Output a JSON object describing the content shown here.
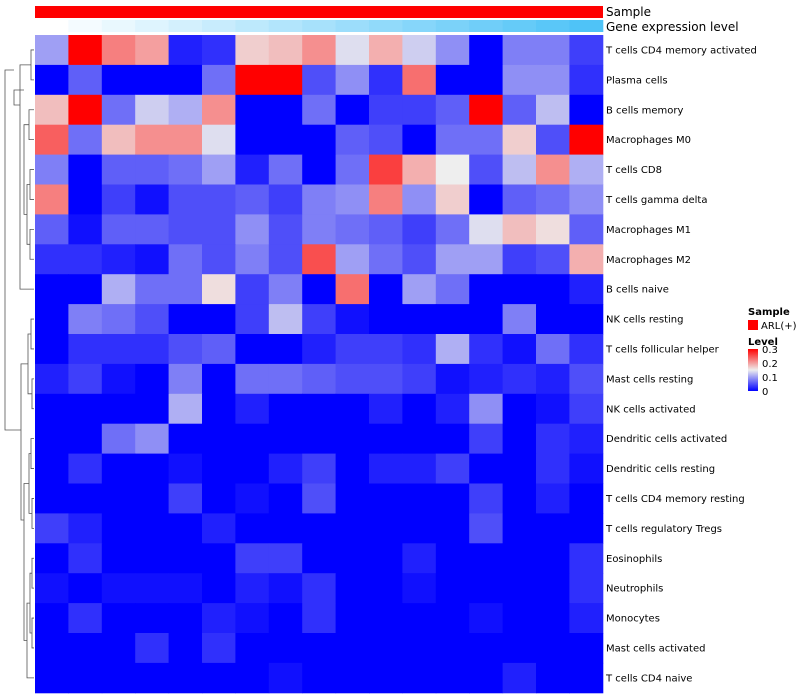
{
  "chart_data": {
    "type": "heatmap",
    "annotations": [
      {
        "label": "Sample",
        "type": "categorical",
        "colors": [
          "#ff0000"
        ]
      },
      {
        "label": "Gene expression level",
        "type": "gradient",
        "color_start": "#ffffff",
        "color_end": "#4fc3f7"
      }
    ],
    "rows": [
      "T cells CD4 memory activated",
      "Plasma cells",
      "B cells memory",
      "Macrophages M0",
      "T cells CD8",
      "T cells gamma delta",
      "Macrophages M1",
      "Macrophages M2",
      "B cells naive",
      "NK cells resting",
      "T cells follicular helper",
      "Mast cells resting",
      "NK cells activated",
      "Dendritic cells activated",
      "Dendritic cells resting",
      "T cells CD4 memory resting",
      "T cells regulatory  Tregs",
      "Eosinophils",
      "Neutrophils",
      "Monocytes",
      "Mast cells activated",
      "T cells CD4 naive"
    ],
    "n_columns": 17,
    "values": [
      [
        0.1,
        0.3,
        0.22,
        0.2,
        0.02,
        0.03,
        0.17,
        0.18,
        0.21,
        0.14,
        0.19,
        0.13,
        0.09,
        0.0,
        0.08,
        0.08,
        0.04
      ],
      [
        0.0,
        0.06,
        0.0,
        0.0,
        0.0,
        0.07,
        0.3,
        0.3,
        0.05,
        0.09,
        0.03,
        0.23,
        0.0,
        0.0,
        0.09,
        0.09,
        0.03
      ],
      [
        0.18,
        0.3,
        0.07,
        0.13,
        0.11,
        0.21,
        0.0,
        0.0,
        0.07,
        0.0,
        0.04,
        0.04,
        0.06,
        0.3,
        0.06,
        0.12,
        0.0
      ],
      [
        0.24,
        0.07,
        0.18,
        0.21,
        0.21,
        0.14,
        0.0,
        0.0,
        0.0,
        0.06,
        0.05,
        0.0,
        0.07,
        0.07,
        0.17,
        0.05,
        0.3
      ],
      [
        0.08,
        0.0,
        0.06,
        0.06,
        0.07,
        0.1,
        0.02,
        0.07,
        0.0,
        0.07,
        0.26,
        0.19,
        0.15,
        0.05,
        0.12,
        0.21,
        0.11
      ],
      [
        0.22,
        0.0,
        0.04,
        0.01,
        0.05,
        0.05,
        0.06,
        0.04,
        0.08,
        0.09,
        0.22,
        0.09,
        0.17,
        0.0,
        0.06,
        0.07,
        0.09
      ],
      [
        0.06,
        0.01,
        0.06,
        0.06,
        0.05,
        0.05,
        0.09,
        0.05,
        0.08,
        0.07,
        0.06,
        0.04,
        0.07,
        0.14,
        0.18,
        0.16,
        0.06
      ],
      [
        0.03,
        0.03,
        0.02,
        0.01,
        0.07,
        0.05,
        0.08,
        0.05,
        0.25,
        0.1,
        0.07,
        0.05,
        0.1,
        0.1,
        0.04,
        0.05,
        0.19
      ],
      [
        0.0,
        0.0,
        0.11,
        0.07,
        0.07,
        0.16,
        0.04,
        0.08,
        0.0,
        0.23,
        0.0,
        0.1,
        0.07,
        0.0,
        0.0,
        0.0,
        0.02
      ],
      [
        0.0,
        0.08,
        0.07,
        0.05,
        0.0,
        0.0,
        0.04,
        0.12,
        0.04,
        0.01,
        0.0,
        0.0,
        0.0,
        0.0,
        0.08,
        0.0,
        0.0
      ],
      [
        0.0,
        0.03,
        0.03,
        0.03,
        0.05,
        0.06,
        0.0,
        0.0,
        0.02,
        0.04,
        0.04,
        0.03,
        0.11,
        0.03,
        0.01,
        0.07,
        0.03
      ],
      [
        0.02,
        0.04,
        0.01,
        0.0,
        0.08,
        0.0,
        0.07,
        0.07,
        0.06,
        0.05,
        0.05,
        0.04,
        0.01,
        0.02,
        0.03,
        0.02,
        0.05
      ],
      [
        0.0,
        0.0,
        0.0,
        0.0,
        0.11,
        0.0,
        0.02,
        0.0,
        0.0,
        0.0,
        0.02,
        0.0,
        0.02,
        0.09,
        0.0,
        0.01,
        0.04
      ],
      [
        0.0,
        0.0,
        0.07,
        0.09,
        0.0,
        0.0,
        0.0,
        0.0,
        0.0,
        0.0,
        0.0,
        0.0,
        0.0,
        0.04,
        0.0,
        0.03,
        0.02
      ],
      [
        0.0,
        0.03,
        0.0,
        0.0,
        0.01,
        0.0,
        0.0,
        0.02,
        0.04,
        0.0,
        0.02,
        0.02,
        0.04,
        0.0,
        0.0,
        0.03,
        0.01
      ],
      [
        0.0,
        0.0,
        0.0,
        0.0,
        0.04,
        0.0,
        0.01,
        0.0,
        0.05,
        0.0,
        0.0,
        0.0,
        0.0,
        0.04,
        0.0,
        0.02,
        0.0
      ],
      [
        0.04,
        0.02,
        0.0,
        0.0,
        0.0,
        0.02,
        0.0,
        0.0,
        0.0,
        0.0,
        0.0,
        0.0,
        0.0,
        0.05,
        0.0,
        0.0,
        0.0
      ],
      [
        0.0,
        0.03,
        0.0,
        0.0,
        0.0,
        0.0,
        0.04,
        0.04,
        0.0,
        0.0,
        0.0,
        0.02,
        0.0,
        0.0,
        0.0,
        0.0,
        0.03
      ],
      [
        0.01,
        0.0,
        0.01,
        0.01,
        0.01,
        0.0,
        0.02,
        0.01,
        0.03,
        0.0,
        0.0,
        0.01,
        0.0,
        0.0,
        0.0,
        0.0,
        0.03
      ],
      [
        0.0,
        0.03,
        0.0,
        0.0,
        0.0,
        0.02,
        0.01,
        0.0,
        0.03,
        0.0,
        0.0,
        0.0,
        0.0,
        0.01,
        0.0,
        0.0,
        0.02
      ],
      [
        0.0,
        0.0,
        0.0,
        0.03,
        0.0,
        0.03,
        0.0,
        0.0,
        0.0,
        0.0,
        0.0,
        0.0,
        0.0,
        0.0,
        0.0,
        0.0,
        0.0
      ],
      [
        0.0,
        0.0,
        0.0,
        0.0,
        0.0,
        0.0,
        0.0,
        0.01,
        0.0,
        0.0,
        0.0,
        0.0,
        0.0,
        0.0,
        0.02,
        0.0,
        0.0
      ]
    ],
    "color_scale": {
      "min": 0,
      "max": 0.3,
      "low": "#0000ff",
      "mid": "#eeeeee",
      "high": "#ff0000"
    },
    "row_dendrogram": true,
    "column_dendrogram": false,
    "legend": {
      "sample_title": "Sample",
      "sample_entry": "ARL(+)",
      "sample_color": "#ff0000",
      "level_title": "Level",
      "level_ticks": [
        "0.3",
        "0.2",
        "0.1",
        "0"
      ],
      "position": "right"
    }
  }
}
